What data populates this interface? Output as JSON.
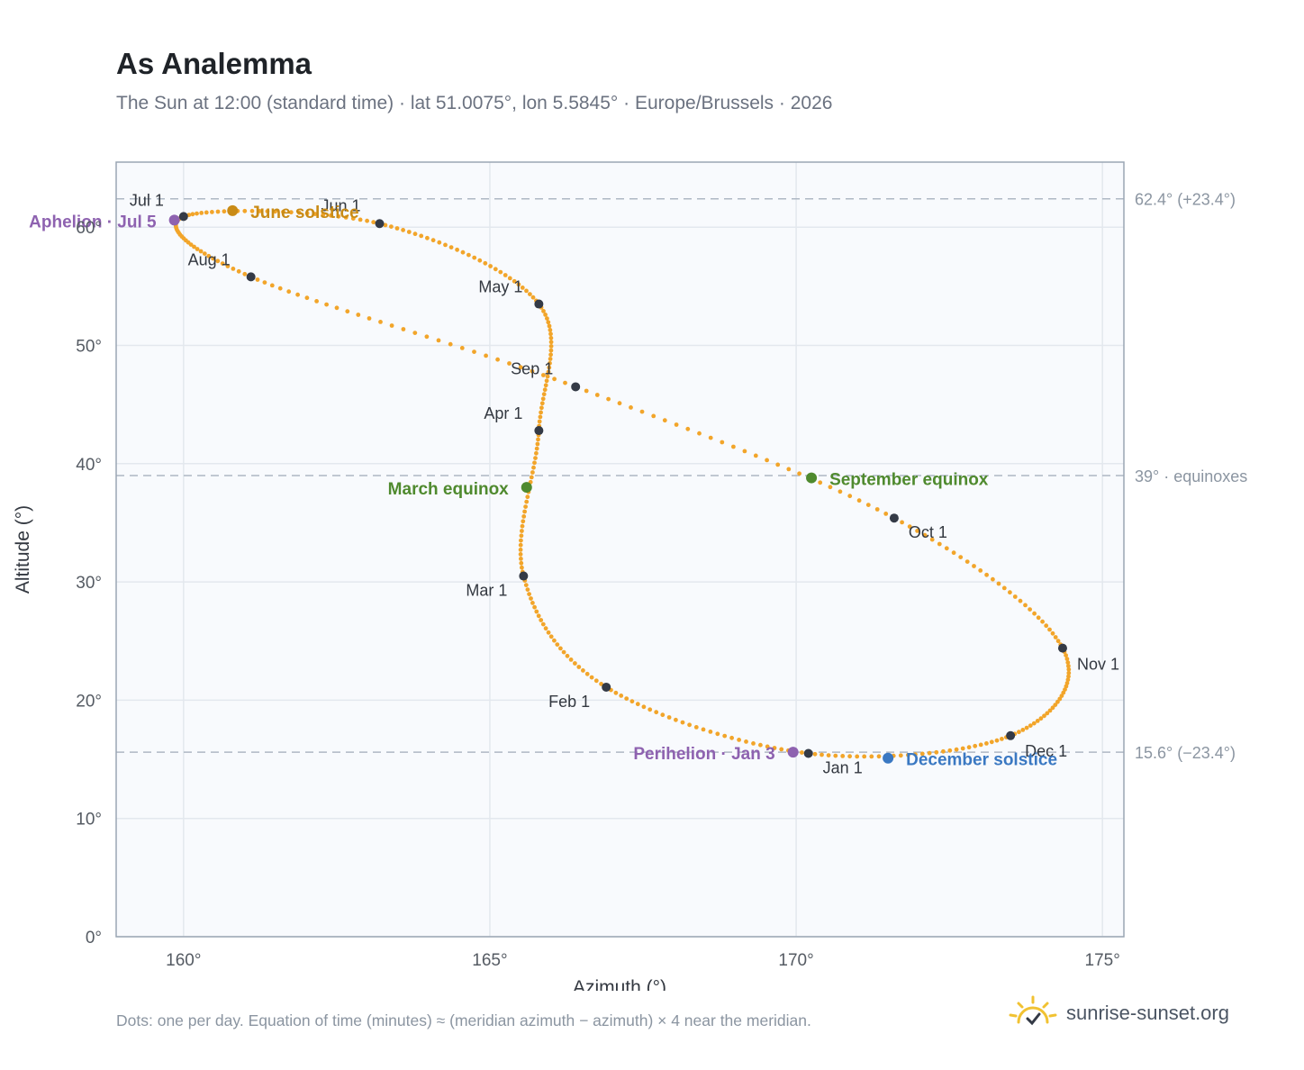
{
  "title": "As Analemma",
  "subtitle": "The Sun at 12:00 (standard time) · lat 51.0075°, lon 5.5845° · Europe/Brussels · 2026",
  "footnote": "Dots: one per day. Equation of time (minutes) ≈ (meridian azimuth − azimuth) × 4 near the meridian.",
  "brand": "sunrise-sunset.org",
  "colors": {
    "path": "#f2a52a",
    "month_marker": "#343a46",
    "june_solstice": "#c98b16",
    "december_solstice": "#3a78c2",
    "equinox": "#4f8a2e",
    "apsis": "#8e62b0",
    "plot_bg": "#f8fafd",
    "grid": "#e3e8ee",
    "reference_line": "#aeb8c4",
    "brand_icon": "#f1c232"
  },
  "chart_data": {
    "type": "scatter",
    "title": "As Analemma",
    "xlabel": "Azimuth (°)",
    "ylabel": "Altitude (°)",
    "xlim": [
      158.9,
      175.35
    ],
    "ylim": [
      0,
      65.5
    ],
    "x_ticks": [
      160,
      165,
      170,
      175
    ],
    "x_tick_labels": [
      "160°",
      "165°",
      "170°",
      "175°"
    ],
    "y_ticks": [
      0,
      10,
      20,
      30,
      40,
      50,
      60
    ],
    "y_tick_labels": [
      "0°",
      "10°",
      "20°",
      "30°",
      "40°",
      "50°",
      "60°"
    ],
    "grid": true,
    "reference_lines": [
      {
        "y": 62.4,
        "label": "62.4° (+23.4°)"
      },
      {
        "y": 39.0,
        "label": "39° · equinoxes"
      },
      {
        "y": 15.6,
        "label": "15.6° (−23.4°)"
      }
    ],
    "month_markers": [
      {
        "label": "Jan 1",
        "azimuth": 170.2,
        "altitude": 15.5
      },
      {
        "label": "Feb 1",
        "azimuth": 166.9,
        "altitude": 21.1
      },
      {
        "label": "Mar 1",
        "azimuth": 165.55,
        "altitude": 30.5
      },
      {
        "label": "Apr 1",
        "azimuth": 165.8,
        "altitude": 42.8
      },
      {
        "label": "May 1",
        "azimuth": 165.8,
        "altitude": 53.5
      },
      {
        "label": "Jun 1",
        "azimuth": 163.2,
        "altitude": 60.3
      },
      {
        "label": "Jul 1",
        "azimuth": 160.0,
        "altitude": 60.9
      },
      {
        "label": "Aug 1",
        "azimuth": 161.1,
        "altitude": 55.8
      },
      {
        "label": "Sep 1",
        "azimuth": 166.4,
        "altitude": 46.5
      },
      {
        "label": "Oct 1",
        "azimuth": 171.6,
        "altitude": 35.4
      },
      {
        "label": "Nov 1",
        "azimuth": 174.35,
        "altitude": 24.4
      },
      {
        "label": "Dec 1",
        "azimuth": 173.5,
        "altitude": 17.0
      }
    ],
    "events": [
      {
        "label": "June solstice",
        "azimuth": 160.8,
        "altitude": 61.4,
        "color_key": "june_solstice"
      },
      {
        "label": "Aphelion · Jul 5",
        "azimuth": 159.85,
        "altitude": 60.6,
        "color_key": "apsis"
      },
      {
        "label": "March equinox",
        "azimuth": 165.6,
        "altitude": 38.0,
        "color_key": "equinox"
      },
      {
        "label": "September equinox",
        "azimuth": 170.25,
        "altitude": 38.8,
        "color_key": "equinox"
      },
      {
        "label": "Perihelion · Jan 3",
        "azimuth": 169.95,
        "altitude": 15.6,
        "color_key": "apsis"
      },
      {
        "label": "December solstice",
        "azimuth": 171.5,
        "altitude": 15.1,
        "color_key": "december_solstice"
      }
    ]
  }
}
